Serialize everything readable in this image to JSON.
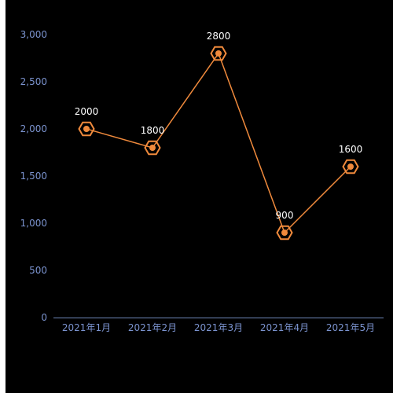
{
  "chart_data": {
    "type": "line",
    "categories": [
      "2021年1月",
      "2021年2月",
      "2021年3月",
      "2021年4月",
      "2021年5月"
    ],
    "series": [
      {
        "values": [
          2000,
          1800,
          2800,
          900,
          1600
        ]
      }
    ],
    "data_labels": [
      "2000",
      "1800",
      "2800",
      "900",
      "1600"
    ],
    "yticks": [
      0,
      500,
      1000,
      1500,
      2000,
      2500,
      3000
    ],
    "ytick_labels": [
      "0",
      "500",
      "1,000",
      "1,500",
      "2,000",
      "2,500",
      "3,000"
    ],
    "ylim": [
      0,
      3000
    ],
    "grid": false,
    "legend": "none",
    "title": "",
    "xlabel": "",
    "ylabel": "",
    "marker": "hexagon"
  },
  "colors": {
    "background": "#000000",
    "line": "#f08a3c",
    "axis": "#6e86b8",
    "tick_text": "#7b93cf",
    "data_label": "#ffffff"
  }
}
